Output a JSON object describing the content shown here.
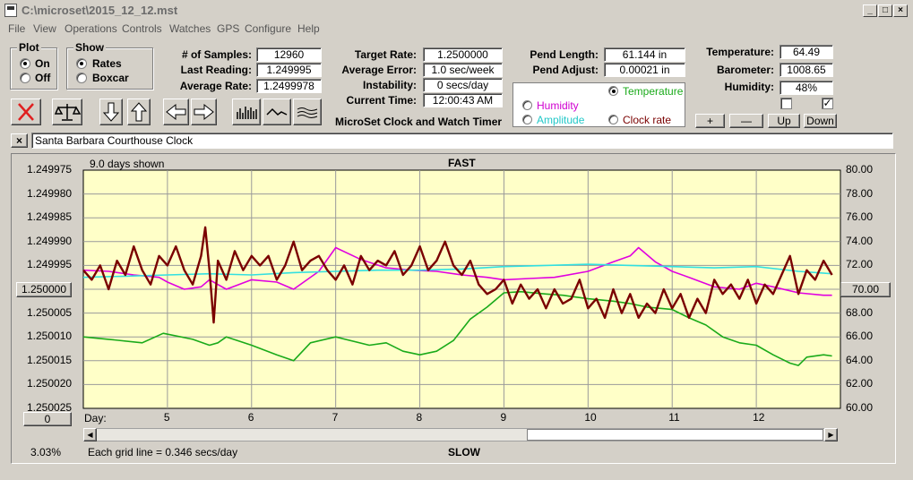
{
  "window": {
    "title": "C:\\microset\\2015_12_12.mst"
  },
  "menu": [
    "File",
    "View",
    "Operations",
    "Controls",
    "Watches",
    "GPS",
    "Configure",
    "Help"
  ],
  "plot_group": {
    "title": "Plot",
    "on": "On",
    "off": "Off",
    "selected": "On"
  },
  "show_group": {
    "title": "Show",
    "rates": "Rates",
    "boxcar": "Boxcar",
    "selected": "Rates"
  },
  "stats": {
    "samples_label": "# of Samples:",
    "samples": "12960",
    "last_label": "Last Reading:",
    "last": "1.249995",
    "avg_label": "Average Rate:",
    "avg": "1.2499978"
  },
  "rate": {
    "target_label": "Target Rate:",
    "target": "1.2500000",
    "error_label": "Average Error:",
    "error": "1.0 sec/week",
    "instab_label": "Instability:",
    "instab": "0 secs/day",
    "time_label": "Current Time:",
    "time": "12:00:43 AM"
  },
  "app_name": "MicroSet Clock and Watch Timer",
  "pend": {
    "length_label": "Pend Length:",
    "length": "61.144 in",
    "adjust_label": "Pend Adjust:",
    "adjust": "0.00021 in"
  },
  "series_select": {
    "temperature": "Temperature",
    "humidity": "Humidity",
    "amplitude": "Amplitude",
    "clockrate": "Clock rate",
    "selected": "Temperature"
  },
  "env": {
    "temp_label": "Temperature:",
    "temp": "64.49",
    "baro_label": "Barometer:",
    "baro": "1008.65",
    "hum_label": "Humidity:",
    "hum": "48%"
  },
  "adjust_buttons": {
    "plus": "+",
    "minus": "—",
    "up": "Up",
    "down": "Down"
  },
  "clock_name": "Santa Barbara Courthouse Clock",
  "close_x": "×",
  "colors": {
    "plot_bg": "#ffffc8",
    "clock_rate": "#7a0000",
    "temperature": "#1aaa1a",
    "humidity": "#e000e0",
    "amplitude": "#33e0e0"
  },
  "chart_data": {
    "type": "line",
    "title": "FAST",
    "bottom_label": "SLOW",
    "days_shown": "9.0 days shown",
    "x_label": "Day:",
    "x_ticks": [
      "5",
      "6",
      "7",
      "8",
      "9",
      "10",
      "11",
      "12"
    ],
    "x_range": [
      4,
      13
    ],
    "left_ticks": [
      "1.249975",
      "1.249980",
      "1.249985",
      "1.249990",
      "1.249995",
      "1.250000",
      "1.250005",
      "1.250010",
      "1.250015",
      "1.250020",
      "1.250025"
    ],
    "left_center_button": "1.250000",
    "left_bottom_button": "0",
    "right_ticks": [
      "80.00",
      "78.00",
      "76.00",
      "74.00",
      "72.00",
      "70.00",
      "68.00",
      "66.00",
      "64.00",
      "62.00",
      "60.00"
    ],
    "right_center_button": "70.00",
    "grid_note": "Each grid line = 0.346 secs/day",
    "percent": "3.03%",
    "series": [
      {
        "name": "Temperature",
        "axis": "right",
        "x": [
          4,
          4.3,
          4.7,
          4.95,
          5.3,
          5.5,
          5.6,
          5.7,
          6.0,
          6.3,
          6.5,
          6.7,
          7.0,
          7.4,
          7.6,
          7.8,
          8.0,
          8.2,
          8.4,
          8.6,
          8.8,
          9.0,
          9.2,
          9.5,
          9.7,
          10.0,
          10.3,
          10.5,
          10.7,
          11.0,
          11.2,
          11.4,
          11.6,
          11.8,
          12.0,
          12.2,
          12.4,
          12.5,
          12.6,
          12.8,
          12.9
        ],
        "y": [
          66.0,
          65.8,
          65.5,
          66.3,
          65.8,
          65.3,
          65.5,
          66.0,
          65.3,
          64.5,
          64.0,
          65.5,
          66.0,
          65.3,
          65.5,
          64.8,
          64.5,
          64.8,
          65.7,
          67.5,
          68.5,
          69.7,
          69.8,
          69.6,
          69.5,
          69.2,
          69.0,
          68.8,
          68.5,
          68.3,
          67.6,
          67.0,
          66.0,
          65.5,
          65.3,
          64.5,
          63.8,
          63.6,
          64.3,
          64.5,
          64.4
        ]
      },
      {
        "name": "Humidity",
        "axis": "right",
        "x": [
          4,
          4.3,
          4.6,
          4.9,
          5.0,
          5.2,
          5.4,
          5.5,
          5.7,
          6.0,
          6.3,
          6.5,
          6.8,
          7.0,
          7.3,
          7.6,
          7.9,
          8.2,
          8.5,
          8.8,
          9.0,
          9.3,
          9.6,
          10.0,
          10.3,
          10.5,
          10.6,
          10.8,
          11.0,
          11.2,
          11.5,
          11.8,
          12.0,
          12.2,
          12.5,
          12.8,
          12.9
        ],
        "y": [
          71.6,
          71.5,
          71.2,
          71.0,
          70.6,
          70.0,
          70.2,
          70.8,
          70.0,
          70.8,
          70.6,
          70.0,
          71.5,
          73.5,
          72.5,
          71.8,
          71.6,
          71.5,
          71.2,
          71.0,
          70.8,
          70.9,
          71.0,
          71.5,
          72.3,
          72.8,
          73.5,
          72.3,
          71.5,
          71.0,
          70.2,
          70.0,
          70.5,
          70.2,
          69.7,
          69.5,
          69.5
        ]
      },
      {
        "name": "Amplitude",
        "axis": "right",
        "x": [
          4,
          4.5,
          5.0,
          5.5,
          6.0,
          6.5,
          7.0,
          7.5,
          8.0,
          8.5,
          9.0,
          9.5,
          10.0,
          10.5,
          11.0,
          11.5,
          12.0,
          12.5,
          12.9
        ],
        "y": [
          71.0,
          71.1,
          71.2,
          71.3,
          71.2,
          71.4,
          71.5,
          71.6,
          71.6,
          71.7,
          71.9,
          72.0,
          72.1,
          72.0,
          71.9,
          71.8,
          71.9,
          71.5,
          71.3
        ]
      },
      {
        "name": "Clock rate",
        "axis": "left",
        "x": [
          4,
          4.1,
          4.2,
          4.3,
          4.4,
          4.5,
          4.6,
          4.7,
          4.8,
          4.9,
          5.0,
          5.1,
          5.2,
          5.3,
          5.4,
          5.45,
          5.5,
          5.55,
          5.6,
          5.7,
          5.8,
          5.9,
          6.0,
          6.1,
          6.2,
          6.3,
          6.4,
          6.5,
          6.6,
          6.7,
          6.8,
          6.9,
          7.0,
          7.1,
          7.2,
          7.3,
          7.4,
          7.5,
          7.6,
          7.7,
          7.8,
          7.9,
          8.0,
          8.1,
          8.2,
          8.3,
          8.4,
          8.5,
          8.6,
          8.7,
          8.8,
          8.9,
          9.0,
          9.1,
          9.2,
          9.3,
          9.4,
          9.5,
          9.6,
          9.7,
          9.8,
          9.9,
          10.0,
          10.1,
          10.2,
          10.3,
          10.4,
          10.5,
          10.6,
          10.7,
          10.8,
          10.9,
          11.0,
          11.1,
          11.2,
          11.3,
          11.4,
          11.5,
          11.6,
          11.7,
          11.8,
          11.9,
          12.0,
          12.1,
          12.2,
          12.3,
          12.4,
          12.5,
          12.6,
          12.7,
          12.8,
          12.9
        ],
        "y": [
          1.249996,
          1.249998,
          1.249995,
          1.25,
          1.249994,
          1.249997,
          1.249991,
          1.249996,
          1.249999,
          1.249993,
          1.249995,
          1.249991,
          1.249996,
          1.249999,
          1.249993,
          1.249987,
          1.249996,
          1.250007,
          1.249994,
          1.249998,
          1.249992,
          1.249996,
          1.249993,
          1.249995,
          1.249993,
          1.249998,
          1.249995,
          1.24999,
          1.249996,
          1.249994,
          1.249993,
          1.249996,
          1.249998,
          1.249995,
          1.249999,
          1.249993,
          1.249996,
          1.249994,
          1.249995,
          1.249992,
          1.249997,
          1.249995,
          1.249991,
          1.249996,
          1.249994,
          1.24999,
          1.249995,
          1.249997,
          1.249994,
          1.249999,
          1.250001,
          1.25,
          1.249998,
          1.250003,
          1.249999,
          1.250002,
          1.25,
          1.250004,
          1.25,
          1.250003,
          1.250002,
          1.249998,
          1.250004,
          1.250002,
          1.250006,
          1.25,
          1.250005,
          1.250001,
          1.250006,
          1.250003,
          1.250005,
          1.25,
          1.250004,
          1.250001,
          1.250006,
          1.250002,
          1.250005,
          1.249998,
          1.250001,
          1.249999,
          1.250002,
          1.249998,
          1.250003,
          1.249999,
          1.250001,
          1.249997,
          1.249993,
          1.250001,
          1.249996,
          1.249998,
          1.249994,
          1.249997
        ]
      }
    ]
  }
}
